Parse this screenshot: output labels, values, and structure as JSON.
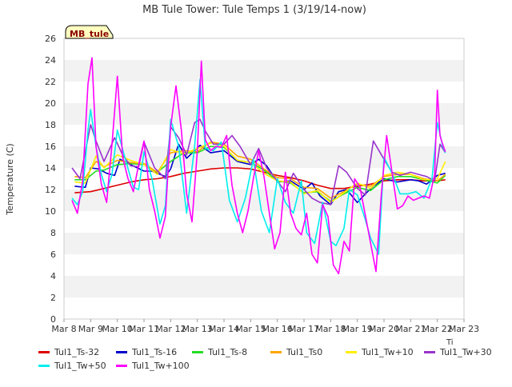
{
  "chart_data": {
    "type": "line",
    "title": "MB Tule Tower: Tule Temps 1 (3/19/14-now)",
    "ylabel": "Temperature (C)",
    "xlabel": "Ti",
    "badge": "MB_tule",
    "ylim": [
      0,
      26
    ],
    "yticks": [
      0,
      2,
      4,
      6,
      8,
      10,
      12,
      14,
      16,
      18,
      20,
      22,
      24,
      26
    ],
    "xlim": [
      8,
      23
    ],
    "xticks": [
      {
        "x": 8,
        "label": "Mar 8"
      },
      {
        "x": 9,
        "label": "Mar 9"
      },
      {
        "x": 10,
        "label": "Mar 10"
      },
      {
        "x": 11,
        "label": "Mar 11"
      },
      {
        "x": 12,
        "label": "Mar 12"
      },
      {
        "x": 13,
        "label": "Mar 13"
      },
      {
        "x": 14,
        "label": "Mar 14"
      },
      {
        "x": 15,
        "label": "Mar 15"
      },
      {
        "x": 16,
        "label": "Mar 16"
      },
      {
        "x": 17,
        "label": "Mar 17"
      },
      {
        "x": 18,
        "label": "Mar 18"
      },
      {
        "x": 19,
        "label": "Mar 19"
      },
      {
        "x": 20,
        "label": "Mar 20"
      },
      {
        "x": 21,
        "label": "Mar 21"
      },
      {
        "x": 22,
        "label": "Mar 22"
      },
      {
        "x": 23,
        "label": "Mar 23"
      }
    ],
    "grid": "horizontal bands",
    "legend_position": "bottom",
    "series": [
      {
        "name": "Tul1_Ts-32",
        "color": "#dd0000",
        "x": [
          8.4,
          9,
          9.5,
          10,
          10.5,
          11,
          11.5,
          12,
          12.5,
          13,
          13.5,
          14,
          14.5,
          15,
          15.5,
          16,
          16.5,
          17,
          17.5,
          18,
          18.5,
          19,
          19.5,
          20,
          20.5,
          21,
          21.5,
          22,
          22.3
        ],
        "y": [
          11.7,
          11.8,
          12.1,
          12.4,
          12.7,
          12.9,
          13.0,
          13.2,
          13.5,
          13.7,
          13.9,
          14.0,
          14.0,
          13.9,
          13.6,
          13.3,
          13.1,
          12.8,
          12.4,
          12.1,
          12.1,
          12.3,
          12.5,
          12.8,
          12.9,
          12.9,
          12.8,
          12.8,
          12.9
        ]
      },
      {
        "name": "Tul1_Ts-16",
        "color": "#0000cc",
        "x": [
          8.4,
          8.8,
          9.0,
          9.3,
          9.6,
          9.9,
          10.1,
          10.5,
          11.0,
          11.3,
          11.8,
          12.0,
          12.3,
          12.6,
          12.9,
          13.1,
          13.5,
          14.0,
          14.5,
          15.0,
          15.3,
          15.6,
          16.0,
          16.5,
          17.0,
          17.3,
          17.6,
          18.0,
          18.3,
          18.6,
          19.0,
          19.3,
          19.6,
          20.0,
          20.5,
          21.0,
          21.3,
          21.6,
          22.0,
          22.3
        ],
        "y": [
          12.3,
          12.2,
          14.0,
          13.9,
          13.5,
          13.3,
          14.8,
          14.3,
          13.7,
          13.7,
          13.2,
          13.9,
          16.2,
          14.9,
          15.6,
          16.1,
          15.4,
          15.6,
          14.6,
          14.3,
          14.8,
          14.2,
          12.7,
          12.8,
          12.0,
          12.6,
          11.4,
          10.6,
          11.8,
          12.0,
          10.8,
          11.6,
          12.3,
          13.0,
          12.7,
          12.9,
          12.8,
          12.5,
          13.3,
          13.5
        ]
      },
      {
        "name": "Tul1_Ts-8",
        "color": "#22dd22",
        "x": [
          8.4,
          8.8,
          9.2,
          9.5,
          10.0,
          10.5,
          11.0,
          11.5,
          12.0,
          12.5,
          13.0,
          13.5,
          14.0,
          14.5,
          15.0,
          15.5,
          16.0,
          16.5,
          17.0,
          17.5,
          18.0,
          18.5,
          19.0,
          19.5,
          20.0,
          20.5,
          21.0,
          21.5,
          22.0,
          22.3
        ],
        "y": [
          12.9,
          12.9,
          13.7,
          13.8,
          14.3,
          14.4,
          14.3,
          13.6,
          14.6,
          15.4,
          15.4,
          16.0,
          15.9,
          14.7,
          14.5,
          13.8,
          12.8,
          12.6,
          11.7,
          11.8,
          10.9,
          11.6,
          12.2,
          11.9,
          12.9,
          13.2,
          13.2,
          12.9,
          12.6,
          13.3
        ]
      },
      {
        "name": "Tul1_Ts0",
        "color": "#ffa500",
        "x": [
          8.4,
          8.8,
          9.2,
          9.5,
          10.0,
          10.5,
          11.0,
          11.5,
          12.0,
          12.5,
          13.0,
          13.5,
          14.0,
          14.5,
          15.0,
          15.5,
          16.0,
          16.5,
          17.0,
          17.5,
          18.0,
          18.5,
          19.0,
          19.5,
          20.0,
          20.5,
          21.0,
          21.5,
          22.0,
          22.3
        ],
        "y": [
          13.2,
          13.1,
          14.6,
          14.1,
          14.7,
          14.5,
          14.4,
          13.6,
          15.4,
          15.6,
          15.5,
          16.4,
          16.2,
          15.1,
          14.8,
          13.9,
          13.1,
          13.0,
          12.2,
          12.1,
          11.2,
          11.8,
          12.5,
          12.3,
          13.2,
          13.4,
          13.4,
          13.0,
          12.8,
          13.4
        ]
      },
      {
        "name": "Tul1_Tw+10",
        "color": "#ffee00",
        "x": [
          8.4,
          8.8,
          9.2,
          9.5,
          10.0,
          10.5,
          11.0,
          11.5,
          12.0,
          12.5,
          13.0,
          13.5,
          14.0,
          14.5,
          15.0,
          15.5,
          16.0,
          16.5,
          17.0,
          17.5,
          18.0,
          18.5,
          19.0,
          19.5,
          20.0,
          20.5,
          21.0,
          21.5,
          22.0,
          22.3
        ],
        "y": [
          12.7,
          12.6,
          15.1,
          14.0,
          15.2,
          14.7,
          14.3,
          13.4,
          15.7,
          15.3,
          15.8,
          16.3,
          16.0,
          14.7,
          14.5,
          13.5,
          12.8,
          12.7,
          11.6,
          11.9,
          10.8,
          11.7,
          12.6,
          12.1,
          13.3,
          13.6,
          13.4,
          12.9,
          13.0,
          14.6
        ]
      },
      {
        "name": "Tul1_Tw+30",
        "color": "#9933cc",
        "x": [
          8.3,
          8.6,
          9.0,
          9.2,
          9.5,
          9.9,
          10.2,
          10.5,
          10.8,
          11.0,
          11.4,
          11.8,
          12.0,
          12.3,
          12.6,
          12.9,
          13.1,
          13.3,
          13.6,
          14.0,
          14.3,
          14.6,
          15.0,
          15.3,
          15.6,
          16.0,
          16.3,
          16.6,
          17.0,
          17.3,
          17.6,
          18.0,
          18.3,
          18.6,
          19.0,
          19.3,
          19.6,
          20.0,
          20.3,
          20.6,
          21.0,
          21.3,
          21.6,
          21.9,
          22.1,
          22.3
        ],
        "y": [
          14.0,
          13.0,
          18.0,
          16.5,
          14.6,
          16.8,
          15.2,
          14.2,
          14.1,
          16.4,
          14.0,
          13.0,
          17.8,
          16.8,
          15.2,
          18.2,
          18.5,
          17.4,
          16.2,
          16.2,
          17.0,
          16.0,
          14.3,
          15.8,
          14.0,
          12.8,
          11.8,
          13.5,
          12.0,
          11.2,
          10.8,
          10.6,
          14.2,
          13.6,
          12.1,
          11.5,
          16.5,
          14.8,
          13.6,
          13.3,
          13.6,
          13.4,
          13.2,
          12.8,
          16.2,
          15.4
        ]
      },
      {
        "name": "Tul1_Tw+50",
        "color": "#00eeee",
        "x": [
          8.3,
          8.5,
          8.7,
          8.9,
          9.0,
          9.2,
          9.4,
          9.6,
          9.8,
          10.0,
          10.3,
          10.6,
          10.8,
          11.0,
          11.3,
          11.6,
          11.8,
          12.0,
          12.3,
          12.6,
          12.9,
          13.1,
          13.3,
          13.6,
          13.9,
          14.2,
          14.5,
          14.8,
          15.1,
          15.4,
          15.7,
          16.0,
          16.3,
          16.6,
          16.9,
          17.1,
          17.4,
          17.7,
          18.0,
          18.2,
          18.5,
          18.7,
          19.0,
          19.3,
          19.5,
          19.8,
          20.0,
          20.3,
          20.6,
          20.9,
          21.2,
          21.5,
          21.8,
          22.0,
          22.2,
          22.3
        ],
        "y": [
          11.2,
          10.6,
          11.8,
          17.5,
          19.4,
          16.0,
          13.4,
          11.8,
          13.4,
          17.5,
          14.8,
          12.2,
          12.0,
          15.5,
          13.0,
          8.8,
          10.5,
          18.5,
          16.0,
          9.8,
          16.0,
          22.2,
          15.8,
          15.6,
          16.4,
          11.0,
          9.0,
          11.2,
          14.8,
          10.0,
          8.0,
          13.0,
          10.8,
          9.8,
          12.8,
          8.0,
          7.0,
          10.8,
          7.2,
          6.8,
          8.4,
          12.0,
          11.5,
          9.2,
          7.5,
          6.0,
          15.0,
          13.5,
          11.6,
          11.6,
          11.8,
          11.2,
          13.0,
          18.2,
          16.0,
          15.4
        ]
      },
      {
        "name": "Tul1_Tw+100",
        "color": "#ff00ff",
        "x": [
          8.3,
          8.5,
          8.7,
          8.9,
          9.05,
          9.2,
          9.4,
          9.6,
          9.8,
          10.0,
          10.2,
          10.4,
          10.6,
          10.8,
          11.0,
          11.2,
          11.4,
          11.6,
          11.8,
          12.0,
          12.2,
          12.4,
          12.6,
          12.8,
          13.0,
          13.15,
          13.3,
          13.5,
          13.7,
          13.9,
          14.1,
          14.3,
          14.5,
          14.7,
          14.9,
          15.1,
          15.3,
          15.5,
          15.7,
          15.9,
          16.1,
          16.3,
          16.5,
          16.7,
          16.9,
          17.1,
          17.3,
          17.5,
          17.7,
          17.9,
          18.1,
          18.3,
          18.5,
          18.7,
          18.9,
          19.1,
          19.3,
          19.5,
          19.7,
          19.9,
          20.1,
          20.3,
          20.5,
          20.7,
          20.9,
          21.1,
          21.3,
          21.5,
          21.7,
          21.9,
          22.0,
          22.1,
          22.2,
          22.3
        ],
        "y": [
          11.0,
          9.8,
          12.8,
          21.8,
          24.2,
          16.0,
          12.5,
          10.8,
          16.2,
          22.5,
          15.0,
          13.0,
          11.8,
          14.3,
          16.5,
          12.0,
          10.0,
          7.5,
          9.5,
          17.8,
          21.6,
          17.5,
          11.6,
          9.0,
          15.6,
          23.9,
          16.6,
          15.6,
          16.0,
          15.9,
          17.0,
          12.4,
          9.8,
          8.0,
          10.0,
          13.0,
          15.6,
          13.2,
          9.8,
          6.5,
          8.0,
          13.6,
          9.8,
          8.4,
          7.8,
          9.8,
          6.0,
          5.2,
          10.6,
          9.5,
          5.0,
          4.2,
          7.2,
          6.3,
          13.0,
          12.2,
          9.6,
          7.0,
          4.4,
          11.6,
          17.0,
          13.6,
          10.2,
          10.5,
          11.4,
          11.0,
          11.2,
          11.4,
          11.2,
          13.4,
          21.2,
          17.0,
          16.2,
          15.5
        ]
      }
    ]
  }
}
